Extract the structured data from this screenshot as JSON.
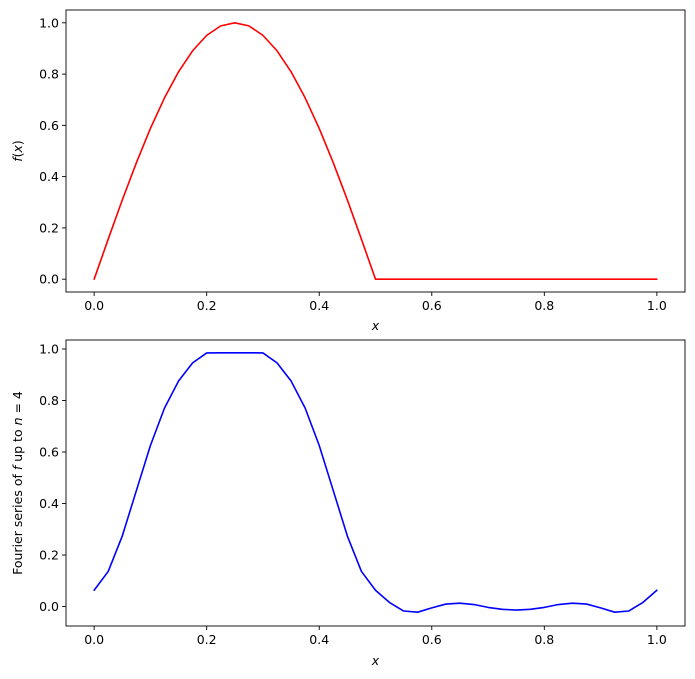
{
  "chart_data": [
    {
      "type": "line",
      "xlabel": "x",
      "ylabel_parts": [
        {
          "text": "f",
          "italic": true
        },
        {
          "text": "(",
          "italic": false
        },
        {
          "text": "x",
          "italic": true
        },
        {
          "text": ")",
          "italic": false
        }
      ],
      "xlim": [
        -0.05,
        1.05
      ],
      "ylim": [
        -0.05,
        1.05
      ],
      "x_ticks": [
        0.0,
        0.2,
        0.4,
        0.6,
        0.8,
        1.0
      ],
      "x_tick_labels": [
        "0.0",
        "0.2",
        "0.4",
        "0.6",
        "0.8",
        "1.0"
      ],
      "y_ticks": [
        0.0,
        0.2,
        0.4,
        0.6,
        0.8,
        1.0
      ],
      "y_tick_labels": [
        "0.0",
        "0.2",
        "0.4",
        "0.6",
        "0.8",
        "1.0"
      ],
      "grid": false,
      "series": [
        {
          "color": "#ff0000",
          "x": [
            0.0,
            0.025,
            0.05,
            0.075,
            0.1,
            0.125,
            0.15,
            0.175,
            0.2,
            0.225,
            0.25,
            0.275,
            0.3,
            0.325,
            0.35,
            0.375,
            0.4,
            0.425,
            0.45,
            0.475,
            0.5,
            0.6,
            0.7,
            0.8,
            0.9,
            1.0
          ],
          "y": [
            0.0,
            0.156,
            0.309,
            0.454,
            0.588,
            0.707,
            0.809,
            0.891,
            0.951,
            0.988,
            1.0,
            0.988,
            0.951,
            0.891,
            0.809,
            0.707,
            0.588,
            0.454,
            0.309,
            0.156,
            0.0,
            0.0,
            0.0,
            0.0,
            0.0,
            0.0
          ]
        }
      ]
    },
    {
      "type": "line",
      "xlabel": "x",
      "ylabel_parts": [
        {
          "text": "Fourier series of ",
          "italic": false
        },
        {
          "text": "f",
          "italic": true
        },
        {
          "text": " up to ",
          "italic": false
        },
        {
          "text": "n",
          "italic": true
        },
        {
          "text": " = 4",
          "italic": false
        }
      ],
      "xlim": [
        -0.05,
        1.05
      ],
      "ylim": [
        -0.0755,
        1.0349
      ],
      "x_ticks": [
        0.0,
        0.2,
        0.4,
        0.6,
        0.8,
        1.0
      ],
      "x_tick_labels": [
        "0.0",
        "0.2",
        "0.4",
        "0.6",
        "0.8",
        "1.0"
      ],
      "y_ticks": [
        0.0,
        0.2,
        0.4,
        0.6,
        0.8,
        1.0
      ],
      "y_tick_labels": [
        "0.0",
        "0.2",
        "0.4",
        "0.6",
        "0.8",
        "1.0"
      ],
      "grid": false,
      "series": [
        {
          "color": "#0000ff",
          "x": [
            0.0,
            0.025,
            0.05,
            0.075,
            0.1,
            0.125,
            0.15,
            0.175,
            0.2,
            0.225,
            0.25,
            0.275,
            0.3,
            0.325,
            0.35,
            0.375,
            0.4,
            0.425,
            0.45,
            0.475,
            0.5,
            0.525,
            0.55,
            0.575,
            0.6,
            0.625,
            0.65,
            0.675,
            0.7,
            0.725,
            0.75,
            0.775,
            0.8,
            0.825,
            0.85,
            0.875,
            0.9,
            0.925,
            0.95,
            0.975,
            1.0
          ],
          "y": [
            0.0634,
            0.1363,
            0.2738,
            0.4499,
            0.6253,
            0.7704,
            0.8756,
            0.946,
            0.9846,
            0.9853,
            0.9851,
            0.9853,
            0.9846,
            0.946,
            0.8756,
            0.7704,
            0.6253,
            0.4499,
            0.2738,
            0.1363,
            0.0634,
            0.0157,
            -0.0173,
            -0.0219,
            -0.005,
            0.0096,
            0.013,
            0.0079,
            -0.0033,
            -0.0107,
            -0.0137,
            -0.0107,
            -0.0033,
            0.0079,
            0.013,
            0.0096,
            -0.005,
            -0.0219,
            -0.0173,
            0.0157,
            0.0634
          ]
        }
      ]
    }
  ]
}
